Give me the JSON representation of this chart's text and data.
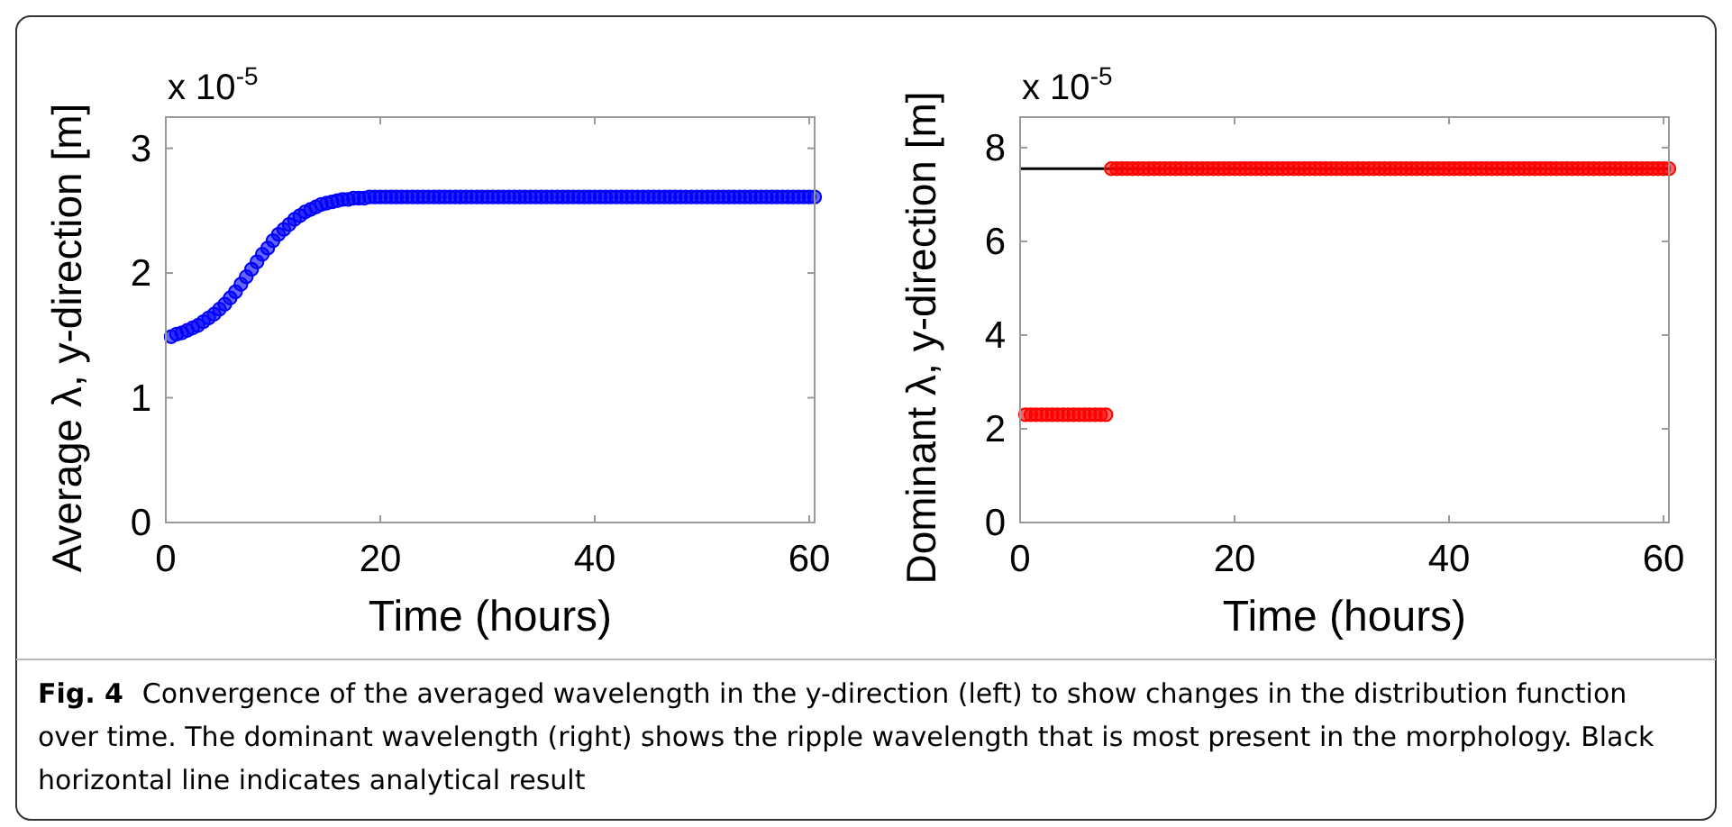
{
  "chart_data": [
    {
      "type": "scatter",
      "xlabel": "Time (hours)",
      "ylabel": "Average λ, y-direction [m]",
      "xlim": [
        0,
        60.5
      ],
      "ylim": [
        0,
        3.25
      ],
      "xticks": [
        0,
        20,
        40,
        60
      ],
      "yticks": [
        0,
        1,
        2,
        3
      ],
      "marker": "circle",
      "grid": false,
      "annotations": [
        "x 10$^{-5}$",
        "Fig. 4",
        "Convergence of the averaged wavelength in the y-direction (left) to show changes in the distribution function over time. The dominant wavelength (right) shows the ripple wavelength that is most present in the morphology. Black horizontal line indicates analytical result"
      ],
      "series": [
        {
          "color": "#0000ff",
          "x": [
            0.5,
            1,
            1.5,
            2,
            2.5,
            3,
            3.5,
            4,
            4.5,
            5,
            5.5,
            6,
            6.5,
            7,
            7.5,
            8,
            8.5,
            9,
            9.5,
            10,
            10.5,
            11,
            11.5,
            12,
            12.5,
            13,
            13.5,
            14,
            14.5,
            15,
            15.5,
            16,
            16.5,
            17,
            17.5,
            18,
            18.5,
            19,
            19.5,
            20,
            20.5,
            21,
            21.5,
            22,
            22.5,
            23,
            23.5,
            24,
            24.5,
            25,
            25.5,
            26,
            26.5,
            27,
            27.5,
            28,
            28.5,
            29,
            29.5,
            30,
            30.5,
            31,
            31.5,
            32,
            32.5,
            33,
            33.5,
            34,
            34.5,
            35,
            35.5,
            36,
            36.5,
            37,
            37.5,
            38,
            38.5,
            39,
            39.5,
            40,
            40.5,
            41,
            41.5,
            42,
            42.5,
            43,
            43.5,
            44,
            44.5,
            45,
            45.5,
            46,
            46.5,
            47,
            47.5,
            48,
            48.5,
            49,
            49.5,
            50,
            50.5,
            51,
            51.5,
            52,
            52.5,
            53,
            53.5,
            54,
            54.5,
            55,
            55.5,
            56,
            56.5,
            57,
            57.5,
            58,
            58.5,
            59,
            59.5,
            60,
            60.5
          ],
          "values": [
            1.49,
            1.51,
            1.52,
            1.54,
            1.56,
            1.58,
            1.61,
            1.64,
            1.67,
            1.71,
            1.75,
            1.8,
            1.85,
            1.91,
            1.97,
            2.03,
            2.09,
            2.15,
            2.2,
            2.26,
            2.31,
            2.35,
            2.39,
            2.43,
            2.46,
            2.49,
            2.51,
            2.53,
            2.55,
            2.56,
            2.57,
            2.58,
            2.59,
            2.59,
            2.6,
            2.6,
            2.6,
            2.61,
            2.61,
            2.61,
            2.61,
            2.61,
            2.61,
            2.61,
            2.61,
            2.61,
            2.61,
            2.61,
            2.61,
            2.61,
            2.61,
            2.61,
            2.61,
            2.61,
            2.61,
            2.61,
            2.61,
            2.61,
            2.61,
            2.61,
            2.61,
            2.61,
            2.61,
            2.61,
            2.61,
            2.61,
            2.61,
            2.61,
            2.61,
            2.61,
            2.61,
            2.61,
            2.61,
            2.61,
            2.61,
            2.61,
            2.61,
            2.61,
            2.61,
            2.61,
            2.61,
            2.61,
            2.61,
            2.61,
            2.61,
            2.61,
            2.61,
            2.61,
            2.61,
            2.61,
            2.61,
            2.61,
            2.61,
            2.61,
            2.61,
            2.61,
            2.61,
            2.61,
            2.61,
            2.61,
            2.61,
            2.61,
            2.61,
            2.61,
            2.61,
            2.61,
            2.61,
            2.61,
            2.61,
            2.61,
            2.61,
            2.61,
            2.61,
            2.61,
            2.61,
            2.61,
            2.61,
            2.61,
            2.61,
            2.61,
            2.61
          ]
        }
      ]
    },
    {
      "type": "scatter",
      "xlabel": "Time (hours)",
      "ylabel": "Dominant λ, y-direction [m]",
      "xlim": [
        0,
        60.5
      ],
      "ylim": [
        0,
        8.65
      ],
      "xticks": [
        0,
        20,
        40,
        60
      ],
      "yticks": [
        0,
        2,
        4,
        6,
        8
      ],
      "marker": "circle",
      "grid": false,
      "annotations": [
        "x 10$^{-5}$"
      ],
      "ref_lines": [
        {
          "axis": "y",
          "value": 7.55,
          "color": "#000000"
        }
      ],
      "series": [
        {
          "color": "#ff0000",
          "x": [
            0.5,
            1,
            1.5,
            2,
            2.5,
            3,
            3.5,
            4,
            4.5,
            5,
            5.5,
            6,
            6.5,
            7,
            7.5,
            8,
            8.5,
            9,
            9.5,
            10,
            10.5,
            11,
            11.5,
            12,
            12.5,
            13,
            13.5,
            14,
            14.5,
            15,
            15.5,
            16,
            16.5,
            17,
            17.5,
            18,
            18.5,
            19,
            19.5,
            20,
            20.5,
            21,
            21.5,
            22,
            22.5,
            23,
            23.5,
            24,
            24.5,
            25,
            25.5,
            26,
            26.5,
            27,
            27.5,
            28,
            28.5,
            29,
            29.5,
            30,
            30.5,
            31,
            31.5,
            32,
            32.5,
            33,
            33.5,
            34,
            34.5,
            35,
            35.5,
            36,
            36.5,
            37,
            37.5,
            38,
            38.5,
            39,
            39.5,
            40,
            40.5,
            41,
            41.5,
            42,
            42.5,
            43,
            43.5,
            44,
            44.5,
            45,
            45.5,
            46,
            46.5,
            47,
            47.5,
            48,
            48.5,
            49,
            49.5,
            50,
            50.5,
            51,
            51.5,
            52,
            52.5,
            53,
            53.5,
            54,
            54.5,
            55,
            55.5,
            56,
            56.5,
            57,
            57.5,
            58,
            58.5,
            59,
            59.5,
            60,
            60.5
          ],
          "values": [
            2.3,
            2.3,
            2.3,
            2.3,
            2.3,
            2.3,
            2.3,
            2.3,
            2.3,
            2.3,
            2.3,
            2.3,
            2.3,
            2.3,
            2.3,
            2.3,
            7.55,
            7.55,
            7.55,
            7.55,
            7.55,
            7.55,
            7.55,
            7.55,
            7.55,
            7.55,
            7.55,
            7.55,
            7.55,
            7.55,
            7.55,
            7.55,
            7.55,
            7.55,
            7.55,
            7.55,
            7.55,
            7.55,
            7.55,
            7.55,
            7.55,
            7.55,
            7.55,
            7.55,
            7.55,
            7.55,
            7.55,
            7.55,
            7.55,
            7.55,
            7.55,
            7.55,
            7.55,
            7.55,
            7.55,
            7.55,
            7.55,
            7.55,
            7.55,
            7.55,
            7.55,
            7.55,
            7.55,
            7.55,
            7.55,
            7.55,
            7.55,
            7.55,
            7.55,
            7.55,
            7.55,
            7.55,
            7.55,
            7.55,
            7.55,
            7.55,
            7.55,
            7.55,
            7.55,
            7.55,
            7.55,
            7.55,
            7.55,
            7.55,
            7.55,
            7.55,
            7.55,
            7.55,
            7.55,
            7.55,
            7.55,
            7.55,
            7.55,
            7.55,
            7.55,
            7.55,
            7.55,
            7.55,
            7.55,
            7.55,
            7.55,
            7.55,
            7.55,
            7.55,
            7.55,
            7.55,
            7.55,
            7.55,
            7.55,
            7.55,
            7.55,
            7.55,
            7.55,
            7.55,
            7.55,
            7.55,
            7.55,
            7.55,
            7.55,
            7.55,
            7.55
          ]
        }
      ]
    }
  ]
}
